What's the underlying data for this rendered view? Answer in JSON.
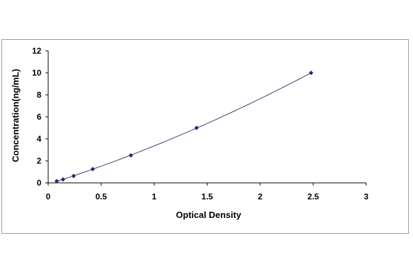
{
  "chart_data": {
    "type": "scatter",
    "title": "",
    "xlabel": "Optical Density",
    "ylabel": "Concentration(ng/mL)",
    "xlim": [
      0,
      3
    ],
    "ylim": [
      0,
      12
    ],
    "x_ticks": [
      "0",
      "0.5",
      "1",
      "1.5",
      "2",
      "2.5",
      "3"
    ],
    "y_ticks": [
      "0",
      "2",
      "4",
      "6",
      "8",
      "10",
      "12"
    ],
    "grid": false,
    "legend": "none",
    "series": [
      {
        "x": [
          0.08,
          0.14,
          0.24,
          0.42,
          0.78,
          1.4,
          2.48
        ],
        "y": [
          0.156,
          0.312,
          0.625,
          1.25,
          2.5,
          5,
          10
        ],
        "marker": "diamond",
        "trendline": "polynomial"
      }
    ],
    "colors": {
      "marker": "#1f2a6b",
      "curve": "#3a3f6e",
      "axis": "#000000"
    }
  }
}
